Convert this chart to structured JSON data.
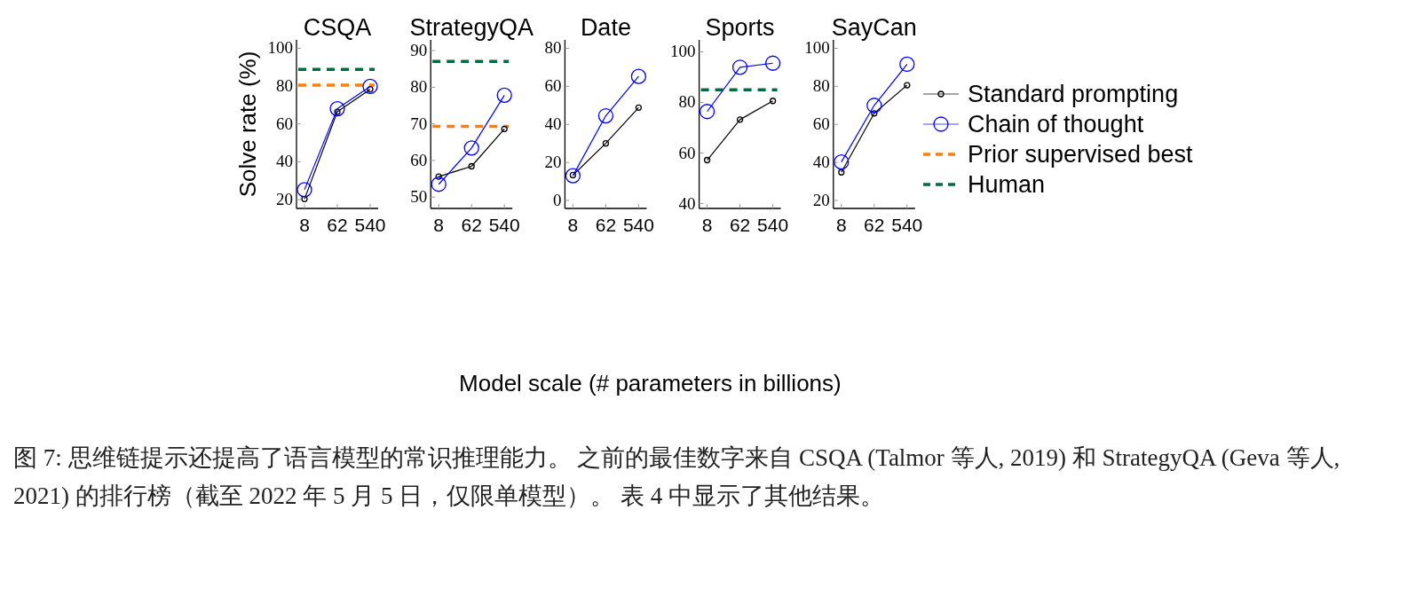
{
  "chart_data": [
    {
      "type": "line",
      "title": "CSQA",
      "ylabel": "Solve rate (%)",
      "categories": [
        "8",
        "62",
        "540"
      ],
      "ylim": [
        15.3,
        104.4
      ],
      "yticks": [
        20,
        40,
        60,
        80,
        100
      ],
      "grid": false,
      "marker": "circle",
      "line_style": "solid",
      "legend": "right",
      "series": [
        {
          "name": "Standard prompting",
          "color": "#000000",
          "values": [
            20.3,
            66.4,
            78.3
          ]
        },
        {
          "name": "Chain of thought",
          "color": "#0000ff",
          "values": [
            25.2,
            68.0,
            79.8
          ]
        }
      ],
      "ref_lines": [
        {
          "axis": "y",
          "value": 80.5,
          "label": "Prior supervised best",
          "color": "#ff7f0e",
          "line_style": "dashed"
        },
        {
          "axis": "y",
          "value": 88.8,
          "label": "Human",
          "color": "#006b3c",
          "line_style": "dashed"
        }
      ]
    },
    {
      "type": "line",
      "title": "StrategyQA",
      "categories": [
        "8",
        "62",
        "540"
      ],
      "ylim": [
        46.9,
        92.9
      ],
      "yticks": [
        50,
        60,
        70,
        80,
        90
      ],
      "grid": false,
      "marker": "circle",
      "line_style": "solid",
      "series": [
        {
          "color": "#000000",
          "values": [
            55.6,
            58.4,
            68.6
          ]
        },
        {
          "color": "#0000ff",
          "values": [
            53.5,
            63.4,
            77.8
          ]
        }
      ],
      "ref_lines": [
        {
          "axis": "y",
          "value": 69.3,
          "color": "#ff7f0e",
          "line_style": "dashed"
        },
        {
          "axis": "y",
          "value": 87.0,
          "color": "#006b3c",
          "line_style": "dashed"
        }
      ]
    },
    {
      "type": "line",
      "title": "Date",
      "xlabel": "Model scale (# parameters in billions)",
      "categories": [
        "8",
        "62",
        "540"
      ],
      "ylim": [
        -4.2,
        84.4
      ],
      "yticks": [
        0,
        20,
        40,
        60,
        80
      ],
      "grid": false,
      "marker": "circle",
      "line_style": "solid",
      "series": [
        {
          "color": "#000000",
          "values": [
            13.3,
            30.0,
            48.8
          ]
        },
        {
          "color": "#0000ff",
          "values": [
            13.0,
            44.5,
            65.2
          ]
        }
      ]
    },
    {
      "type": "line",
      "title": "Sports",
      "categories": [
        "8",
        "62",
        "540"
      ],
      "ylim": [
        38.1,
        104.7
      ],
      "yticks": [
        40,
        60,
        80,
        100
      ],
      "grid": false,
      "marker": "circle",
      "line_style": "solid",
      "series": [
        {
          "color": "#000000",
          "values": [
            57.2,
            73.2,
            80.6
          ]
        },
        {
          "color": "#0000ff",
          "values": [
            76.4,
            93.9,
            95.5
          ]
        }
      ],
      "ref_lines": [
        {
          "axis": "y",
          "value": 85.0,
          "color": "#006b3c",
          "line_style": "dashed"
        }
      ]
    },
    {
      "type": "line",
      "title": "SayCan",
      "categories": [
        "8",
        "62",
        "540"
      ],
      "ylim": [
        15.8,
        104.4
      ],
      "yticks": [
        20,
        40,
        60,
        80,
        100
      ],
      "grid": false,
      "marker": "circle",
      "line_style": "solid",
      "series": [
        {
          "color": "#000000",
          "values": [
            34.8,
            65.8,
            80.6
          ]
        },
        {
          "color": "#0000ff",
          "values": [
            40.2,
            70.0,
            91.6
          ]
        }
      ],
      "annotations": [
        "图 7: 思维链提示还提高了语言模型的常识推理能力。 之前的最佳数字来自 CSQA (Talmor 等人, 2019) 和 StrategyQA (Geva 等人, 2021) 的排行榜（截至 2022 年 5 月 5 日，仅限单模型）。 表 4 中显示了其他结果。"
      ]
    }
  ]
}
